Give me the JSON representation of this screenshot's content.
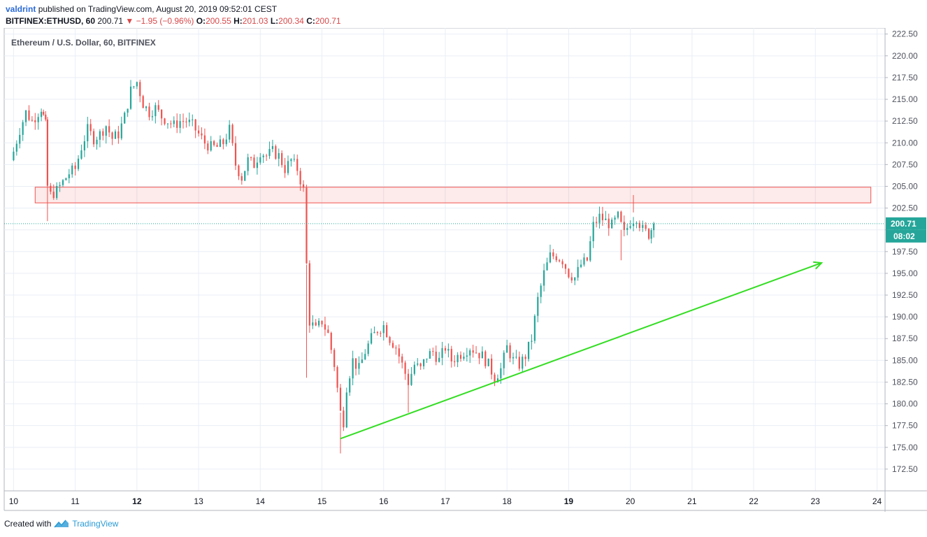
{
  "header": {
    "user": "valdrint",
    "published_text": "published on TradingView.com, August 20, 2019 09:52:01 CEST",
    "symbol": "BITFINEX:ETHUSD, 60",
    "price": "200.71",
    "change": "−1.95 (−0.96%)",
    "o_label": "O:",
    "o_value": "200.55",
    "h_label": "H:",
    "h_value": "201.03",
    "l_label": "L:",
    "l_value": "200.34",
    "c_label": "C:",
    "c_value": "200.71"
  },
  "footer": {
    "created_with": "Created with",
    "brand": "TradingView"
  },
  "colors": {
    "up": "#26a69a",
    "down": "#ef5350",
    "trendline": "#33dd22",
    "zone": "#ef5350",
    "price_line": "#26a69a"
  },
  "chart_data": {
    "type": "candlestick",
    "title": "Ethereum / U.S. Dollar, 60, BITFINEX",
    "x_ticks": [
      "10",
      "11",
      "12",
      "13",
      "14",
      "15",
      "16",
      "17",
      "18",
      "19",
      "20",
      "21",
      "22",
      "23",
      "24"
    ],
    "x_range": [
      10,
      24
    ],
    "y_ticks": [
      "172.50",
      "175.00",
      "177.50",
      "180.00",
      "182.50",
      "185.00",
      "187.50",
      "190.00",
      "192.50",
      "195.00",
      "197.50",
      "200.00",
      "202.50",
      "205.00",
      "207.50",
      "210.00",
      "212.50",
      "215.00",
      "217.50",
      "220.00",
      "222.50"
    ],
    "y_range": [
      170,
      223.2
    ],
    "last_price": "200.71",
    "countdown": "08:02",
    "resistance_zone": {
      "y_low": 203.1,
      "y_high": 204.9,
      "x_start": 10.35,
      "x_end": 23.9
    },
    "trendline": {
      "x1": 15.3,
      "y1": 176.0,
      "x2": 23.1,
      "y2": 196.2,
      "arrow": true
    },
    "close_path": [
      [
        9.95,
        208
      ],
      [
        10.0,
        209
      ],
      [
        10.1,
        211.5
      ],
      [
        10.2,
        213.5
      ],
      [
        10.3,
        212.5
      ],
      [
        10.4,
        213.5
      ],
      [
        10.45,
        214
      ],
      [
        10.52,
        212
      ],
      [
        10.55,
        205
      ],
      [
        10.6,
        204
      ],
      [
        10.7,
        204.5
      ],
      [
        10.8,
        205.5
      ],
      [
        10.9,
        206.5
      ],
      [
        11.0,
        207
      ],
      [
        11.1,
        209.5
      ],
      [
        11.2,
        211.5
      ],
      [
        11.3,
        210.5
      ],
      [
        11.4,
        211
      ],
      [
        11.5,
        212
      ],
      [
        11.6,
        210.5
      ],
      [
        11.7,
        211
      ],
      [
        11.8,
        213
      ],
      [
        11.9,
        216
      ],
      [
        12.0,
        217
      ],
      [
        12.1,
        214.5
      ],
      [
        12.2,
        213.5
      ],
      [
        12.3,
        214
      ],
      [
        12.4,
        213
      ],
      [
        12.5,
        212.5
      ],
      [
        12.6,
        212
      ],
      [
        12.7,
        212.5
      ],
      [
        12.8,
        212.5
      ],
      [
        12.9,
        212
      ],
      [
        13.0,
        211
      ],
      [
        13.1,
        210
      ],
      [
        13.2,
        209.5
      ],
      [
        13.3,
        209.5
      ],
      [
        13.4,
        210
      ],
      [
        13.5,
        211.5
      ],
      [
        13.6,
        207.5
      ],
      [
        13.7,
        206
      ],
      [
        13.8,
        208
      ],
      [
        13.9,
        207.5
      ],
      [
        14.0,
        209
      ],
      [
        14.1,
        208.5
      ],
      [
        14.2,
        209
      ],
      [
        14.3,
        208.5
      ],
      [
        14.4,
        207
      ],
      [
        14.5,
        208
      ],
      [
        14.6,
        207
      ],
      [
        14.7,
        204.5
      ],
      [
        14.75,
        196
      ],
      [
        14.8,
        189.5
      ],
      [
        14.9,
        188.5
      ],
      [
        15.0,
        189.5
      ],
      [
        15.1,
        188
      ],
      [
        15.2,
        184.5
      ],
      [
        15.3,
        179
      ],
      [
        15.35,
        178
      ],
      [
        15.4,
        182
      ],
      [
        15.5,
        185
      ],
      [
        15.6,
        184
      ],
      [
        15.7,
        186
      ],
      [
        15.8,
        187.5
      ],
      [
        15.9,
        188.5
      ],
      [
        16.0,
        189
      ],
      [
        16.1,
        187.5
      ],
      [
        16.2,
        186.5
      ],
      [
        16.3,
        184.5
      ],
      [
        16.4,
        182.5
      ],
      [
        16.5,
        184.5
      ],
      [
        16.6,
        184
      ],
      [
        16.7,
        185.5
      ],
      [
        16.8,
        186
      ],
      [
        16.9,
        185
      ],
      [
        17.0,
        186.5
      ],
      [
        17.1,
        185
      ],
      [
        17.2,
        185.5
      ],
      [
        17.3,
        186
      ],
      [
        17.4,
        186.5
      ],
      [
        17.5,
        186
      ],
      [
        17.6,
        185.5
      ],
      [
        17.7,
        184.5
      ],
      [
        17.8,
        183
      ],
      [
        17.9,
        184
      ],
      [
        18.0,
        186.5
      ],
      [
        18.1,
        185
      ],
      [
        18.2,
        184.5
      ],
      [
        18.3,
        185.5
      ],
      [
        18.4,
        187.5
      ],
      [
        18.5,
        192
      ],
      [
        18.6,
        195
      ],
      [
        18.7,
        197
      ],
      [
        18.8,
        197
      ],
      [
        18.9,
        196.5
      ],
      [
        19.0,
        195
      ],
      [
        19.1,
        194.5
      ],
      [
        19.2,
        196
      ],
      [
        19.3,
        196.5
      ],
      [
        19.4,
        200.5
      ],
      [
        19.5,
        201.5
      ],
      [
        19.6,
        201
      ],
      [
        19.7,
        200.5
      ],
      [
        19.8,
        201.5
      ],
      [
        19.9,
        199.5
      ],
      [
        20.0,
        201
      ],
      [
        20.1,
        201.5
      ],
      [
        20.2,
        200
      ],
      [
        20.3,
        199.5
      ],
      [
        20.38,
        200.71
      ]
    ]
  }
}
